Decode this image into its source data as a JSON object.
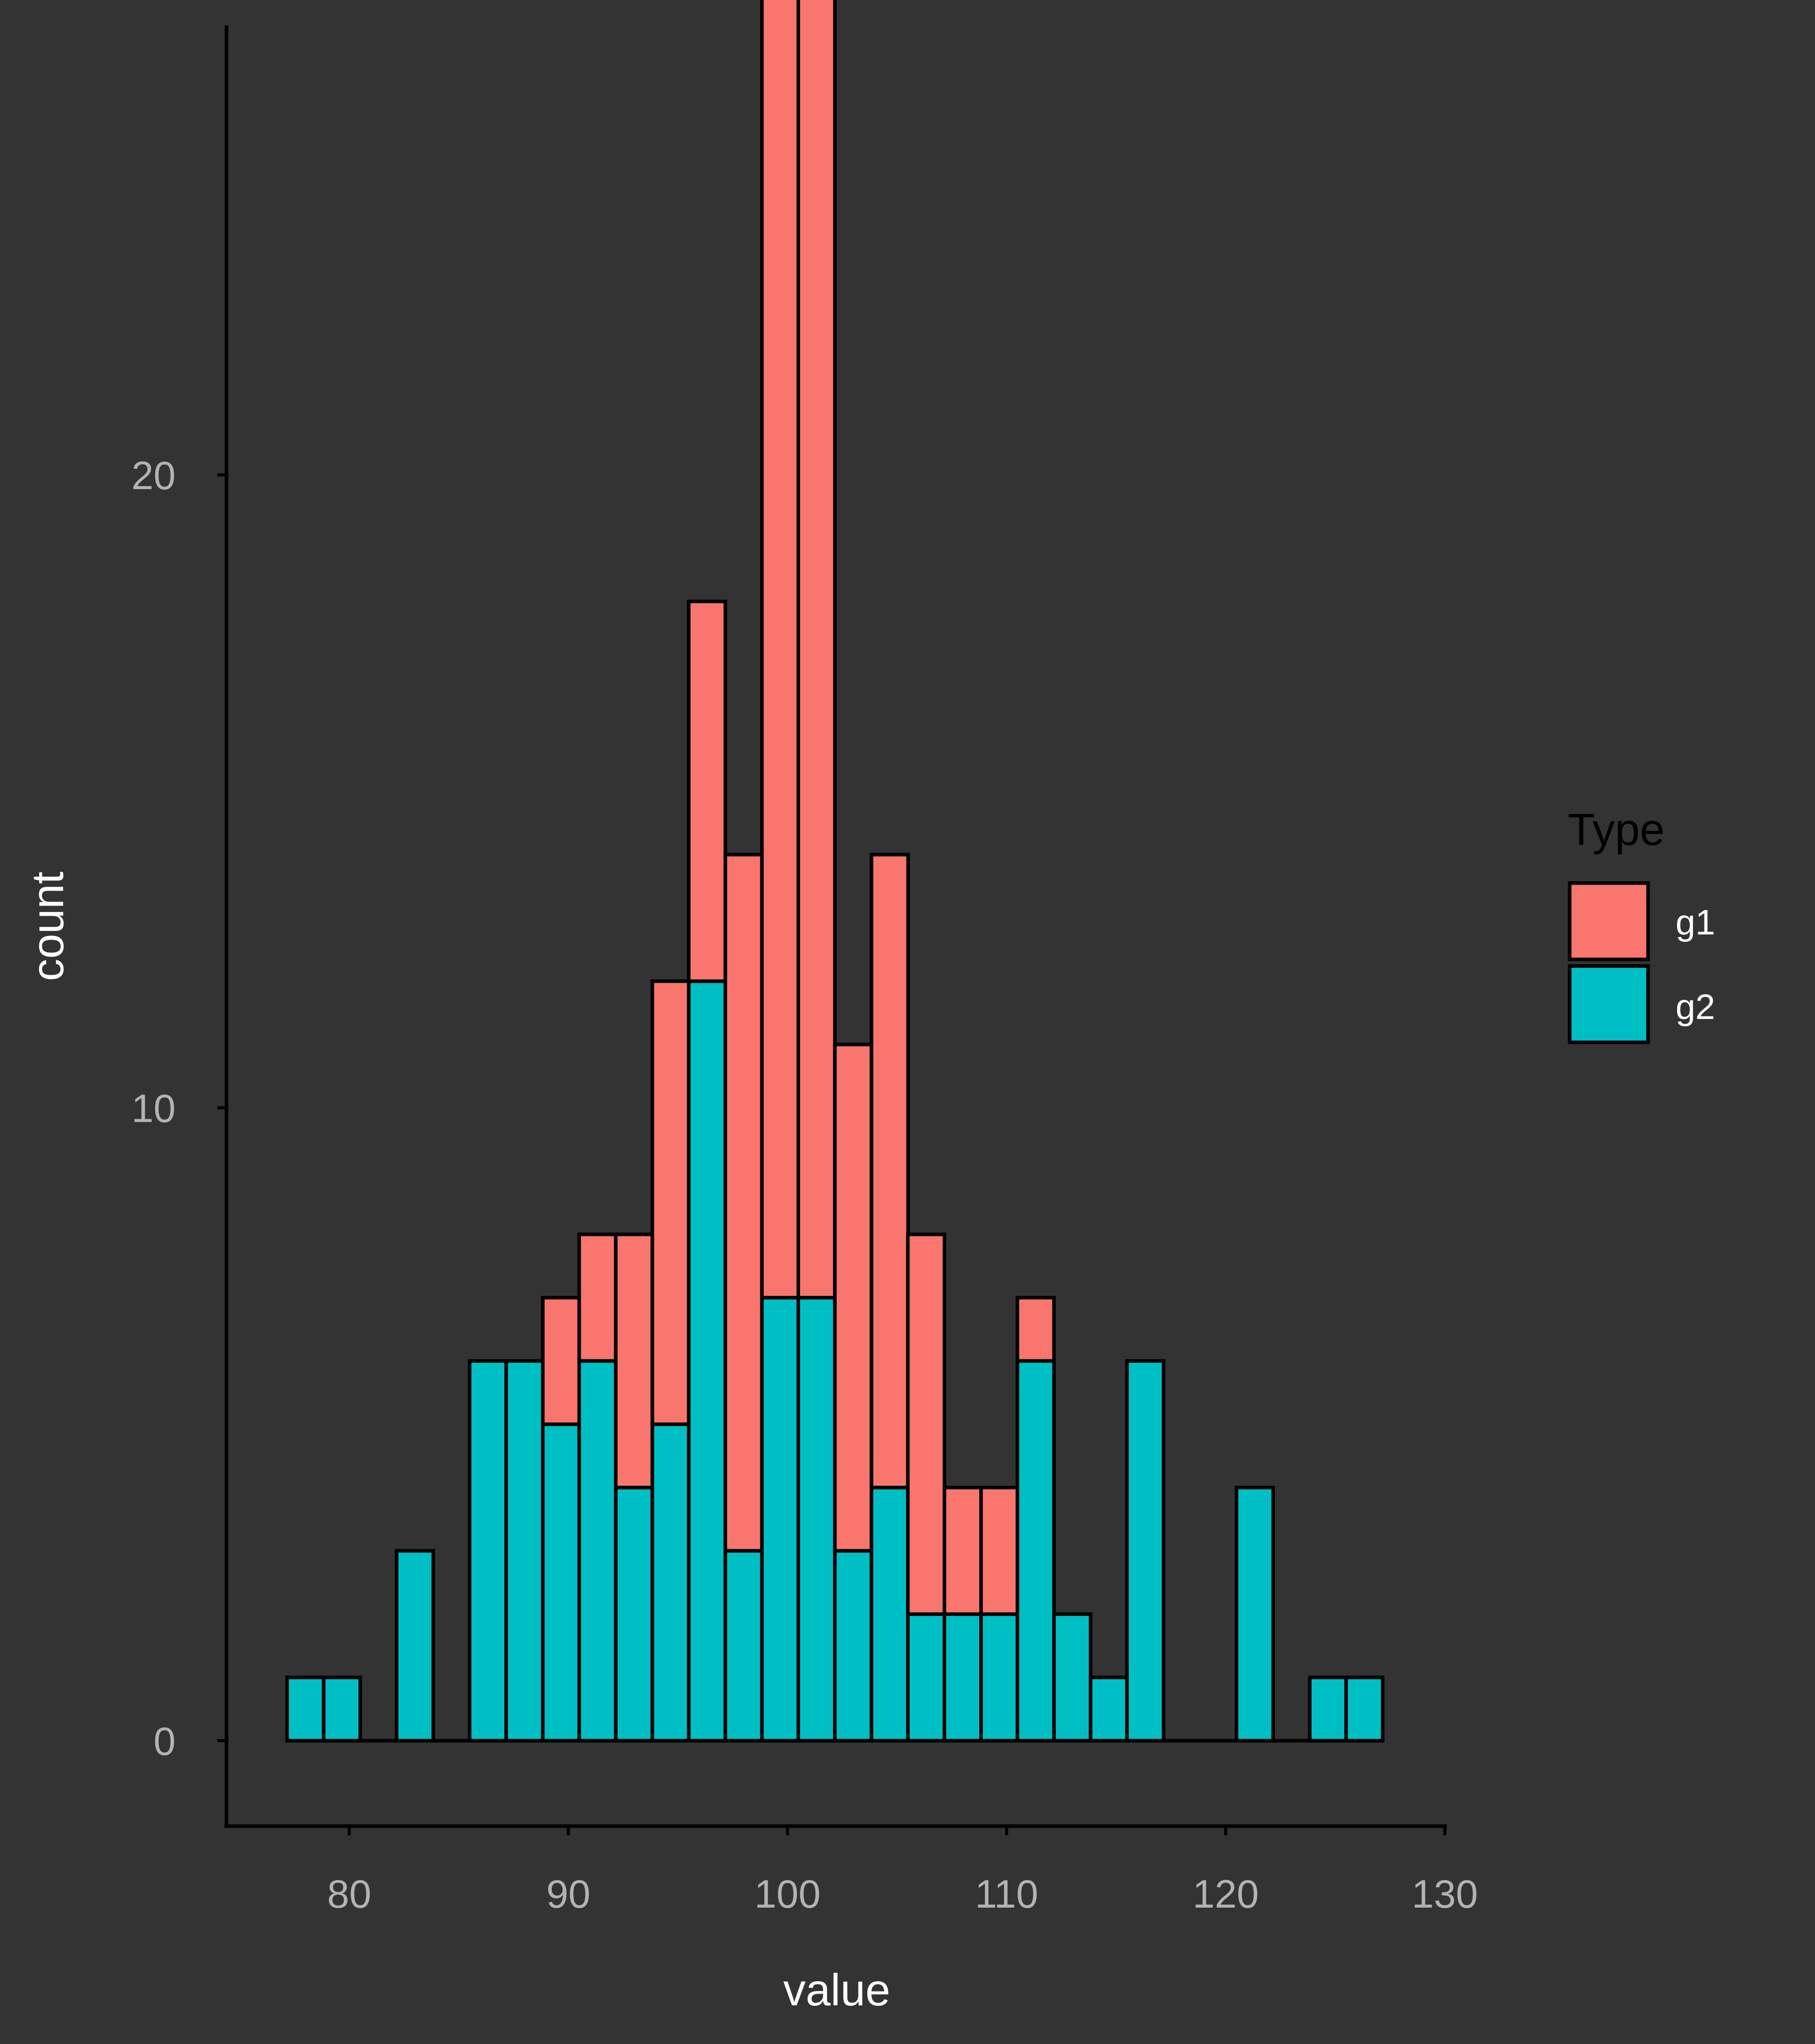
{
  "chart_data": {
    "type": "bar",
    "stacked": true,
    "x": [
      78,
      79.67,
      81.33,
      83,
      84.67,
      86.33,
      88,
      89.67,
      91.33,
      93,
      94.67,
      96.33,
      98,
      99.67,
      101.33,
      103,
      104.67,
      106.33,
      108,
      109.67,
      111.33,
      113,
      114.67,
      116.33,
      118,
      119.67,
      121.33,
      123,
      124.67,
      126.33
    ],
    "series": [
      {
        "name": "g2",
        "color": "#00BFC4",
        "values": [
          1,
          1,
          0,
          3,
          0,
          6,
          6,
          5,
          6,
          4,
          5,
          12,
          3,
          7,
          7,
          3,
          4,
          2,
          2,
          2,
          6,
          2,
          1,
          6,
          0,
          0,
          4,
          0,
          1,
          1
        ]
      },
      {
        "name": "g1",
        "color": "#F8766D",
        "values": [
          0,
          0,
          0,
          0,
          0,
          0,
          0,
          2,
          2,
          4,
          7,
          6,
          11,
          21,
          23,
          8,
          10,
          6,
          2,
          2,
          1,
          0,
          0,
          0,
          0,
          0,
          0,
          0,
          0,
          0
        ]
      }
    ],
    "xlabel": "value",
    "ylabel": "count",
    "xlim": [
      74.4,
      130.1
    ],
    "ylim": [
      -1.35,
      27.1
    ],
    "xticks": [
      80,
      90,
      100,
      110,
      120,
      130
    ],
    "yticks": [
      0,
      10,
      20
    ],
    "xtick_labels": [
      "80",
      "90",
      "100",
      "110",
      "120",
      "130"
    ],
    "ytick_labels": [
      "0",
      "10",
      "20"
    ],
    "grid": false,
    "legend": {
      "title": "Type",
      "position": "right",
      "entries": [
        "g1",
        "g2"
      ]
    },
    "background": "#333333"
  }
}
